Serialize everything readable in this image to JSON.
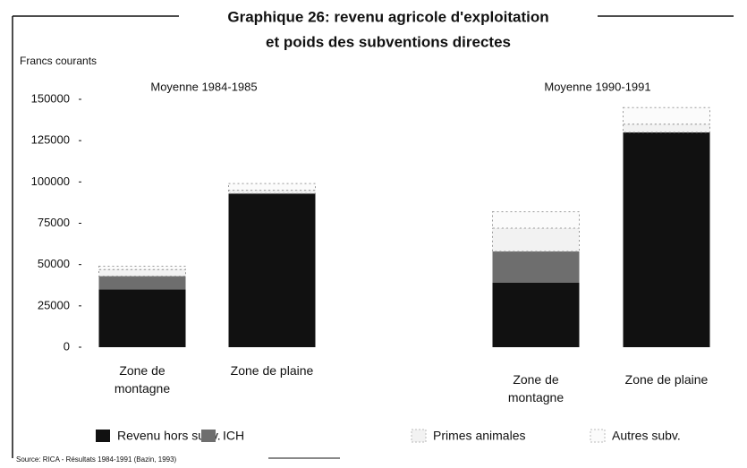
{
  "chart_data": {
    "type": "stacked_bar",
    "title": [
      "Graphique 26: revenu agricole d'exploitation",
      "et poids des subventions directes"
    ],
    "y_label": "Francs courants",
    "groups": [
      "Moyenne 1984-1985",
      "Moyenne 1990-1991"
    ],
    "categories": [
      "Zone de montagne",
      "Zone de plaine",
      "Zone de montagne",
      "Zone de plaine"
    ],
    "series": [
      {
        "name": "Revenu hors subv.",
        "color": "#111111",
        "values": [
          35000,
          93000,
          39000,
          130000
        ]
      },
      {
        "name": "ICH",
        "color": "#6e6e6e",
        "values": [
          8000,
          0,
          19000,
          0
        ]
      },
      {
        "name": "Primes animales",
        "color": "#f2f2f2",
        "values": [
          4000,
          2000,
          14000,
          5000
        ]
      },
      {
        "name": "Autres subv.",
        "color": "#fbfbfb",
        "values": [
          2000,
          4000,
          10000,
          10000
        ]
      }
    ],
    "ylim": [
      0,
      150000
    ],
    "yticks": [
      0,
      25000,
      50000,
      75000,
      100000,
      125000,
      150000
    ],
    "source": "Source: RICA - Résultats 1984-1991 (Bazin, 1993)"
  }
}
